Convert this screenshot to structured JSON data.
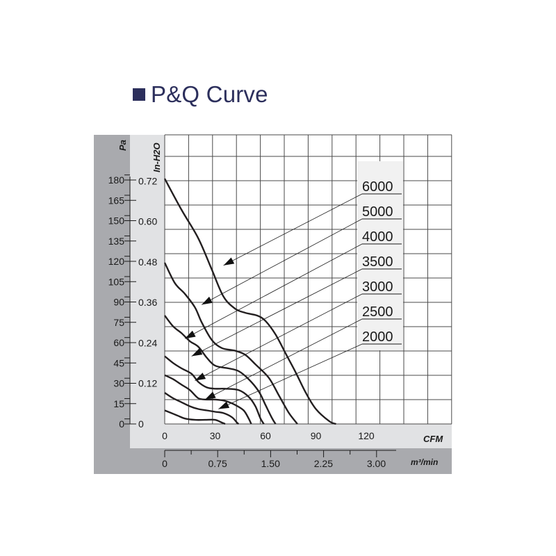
{
  "page_title": "P&Q Curve",
  "colors": {
    "title": "#2c2f5c",
    "panel_dark": "#a9aaae",
    "panel_light": "#e1e2e4",
    "curve": "#231f20"
  },
  "chart_data": {
    "type": "line",
    "title": "P&Q Curve",
    "x_axis_primary": {
      "unit": "CFM",
      "ticks": [
        "0",
        "30",
        "60",
        "90",
        "120"
      ],
      "range": [
        0,
        120
      ]
    },
    "x_axis_secondary": {
      "unit": "m³/min",
      "ticks": [
        "0",
        "0.75",
        "1.50",
        "2.25",
        "3.00"
      ]
    },
    "y_axis_primary": {
      "unit": "Pa",
      "ticks": [
        "0",
        "15",
        "30",
        "45",
        "60",
        "75",
        "90",
        "105",
        "120",
        "135",
        "150",
        "165",
        "180"
      ],
      "range": [
        0,
        180
      ]
    },
    "y_axis_secondary": {
      "unit": "In-H2O",
      "ticks": [
        "0",
        "0.12",
        "0.24",
        "0.36",
        "0.48",
        "0.60",
        "0.72"
      ]
    },
    "grid": true,
    "legend": "right, with arrows to curves",
    "series": [
      {
        "name": "6000",
        "points": [
          [
            0,
            181
          ],
          [
            10,
            158
          ],
          [
            20,
            137
          ],
          [
            28,
            114
          ],
          [
            35,
            94
          ],
          [
            42,
            85
          ],
          [
            48,
            82
          ],
          [
            55,
            80
          ],
          [
            60,
            76
          ],
          [
            66,
            66
          ],
          [
            72,
            52
          ],
          [
            78,
            38
          ],
          [
            84,
            23
          ],
          [
            90,
            11
          ],
          [
            98,
            2
          ],
          [
            102,
            0
          ]
        ]
      },
      {
        "name": "5000",
        "points": [
          [
            0,
            119
          ],
          [
            6,
            104
          ],
          [
            12,
            96
          ],
          [
            18,
            86
          ],
          [
            22,
            75
          ],
          [
            28,
            62
          ],
          [
            34,
            56
          ],
          [
            42,
            54
          ],
          [
            48,
            51
          ],
          [
            54,
            44
          ],
          [
            62,
            34
          ],
          [
            68,
            21
          ],
          [
            74,
            8
          ],
          [
            79,
            0
          ]
        ]
      },
      {
        "name": "4000",
        "points": [
          [
            0,
            80
          ],
          [
            5,
            72
          ],
          [
            10,
            67
          ],
          [
            15,
            61
          ],
          [
            20,
            57
          ],
          [
            25,
            49
          ],
          [
            30,
            43
          ],
          [
            38,
            41
          ],
          [
            44,
            39
          ],
          [
            50,
            33
          ],
          [
            56,
            24
          ],
          [
            60,
            14
          ],
          [
            64,
            4
          ],
          [
            66,
            0
          ]
        ]
      },
      {
        "name": "3500",
        "points": [
          [
            0,
            50
          ],
          [
            5,
            45
          ],
          [
            10,
            41
          ],
          [
            16,
            37
          ],
          [
            20,
            31
          ],
          [
            25,
            27
          ],
          [
            30,
            26
          ],
          [
            36,
            26
          ],
          [
            44,
            25
          ],
          [
            50,
            20
          ],
          [
            54,
            13
          ],
          [
            57,
            4
          ],
          [
            59,
            0
          ]
        ]
      },
      {
        "name": "3000",
        "points": [
          [
            0,
            36
          ],
          [
            5,
            33
          ],
          [
            10,
            29
          ],
          [
            15,
            25
          ],
          [
            20,
            19
          ],
          [
            25,
            18
          ],
          [
            30,
            18
          ],
          [
            36,
            17
          ],
          [
            42,
            14
          ],
          [
            47,
            10
          ],
          [
            50,
            4
          ],
          [
            51.5,
            0
          ]
        ]
      },
      {
        "name": "2500",
        "points": [
          [
            0,
            23
          ],
          [
            5,
            19
          ],
          [
            10,
            16
          ],
          [
            15,
            13
          ],
          [
            20,
            11
          ],
          [
            25,
            10
          ],
          [
            30,
            9
          ],
          [
            35,
            8
          ],
          [
            40,
            5
          ],
          [
            43,
            1
          ],
          [
            44,
            0
          ]
        ]
      },
      {
        "name": "2000",
        "points": [
          [
            0,
            10
          ],
          [
            4,
            8
          ],
          [
            8,
            6
          ],
          [
            12,
            4
          ],
          [
            18,
            3
          ],
          [
            24,
            3
          ],
          [
            30,
            3
          ],
          [
            34,
            1
          ],
          [
            36,
            0
          ]
        ]
      }
    ],
    "arrow_targets": [
      [
        35,
        117
      ],
      [
        22,
        88
      ],
      [
        12,
        63
      ],
      [
        16,
        50
      ],
      [
        18,
        32
      ],
      [
        24,
        18
      ],
      [
        32,
        11
      ]
    ]
  }
}
